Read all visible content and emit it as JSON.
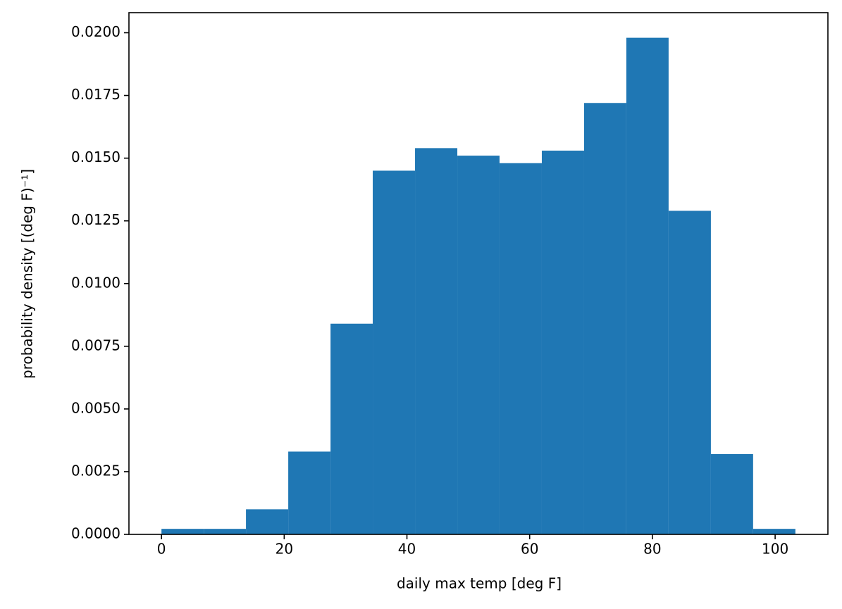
{
  "chart_data": {
    "type": "histogram",
    "xlabel": "daily max temp [deg F]",
    "ylabel": "probability density [(deg F)⁻¹]",
    "bins": [
      0,
      6.89,
      13.77,
      20.66,
      27.55,
      34.43,
      41.32,
      48.21,
      55.09,
      61.98,
      68.87,
      75.75,
      82.64,
      89.53,
      96.41,
      103.3
    ],
    "values": [
      0.00022,
      0.00022,
      0.001,
      0.0033,
      0.0084,
      0.0145,
      0.0154,
      0.0151,
      0.0148,
      0.0153,
      0.0172,
      0.0198,
      0.0129,
      0.0032,
      0.00022
    ],
    "color": "#1f77b4",
    "xlim": [
      -5.3,
      108.6
    ],
    "ylim": [
      0,
      0.0208
    ],
    "xticks": [
      0,
      20,
      40,
      60,
      80,
      100
    ],
    "yticks": [
      {
        "value": 0,
        "label": "0.0000"
      },
      {
        "value": 0.0025,
        "label": "0.0025"
      },
      {
        "value": 0.005,
        "label": "0.0050"
      },
      {
        "value": 0.0075,
        "label": "0.0075"
      },
      {
        "value": 0.01,
        "label": "0.0100"
      },
      {
        "value": 0.0125,
        "label": "0.0125"
      },
      {
        "value": 0.015,
        "label": "0.0150"
      },
      {
        "value": 0.0175,
        "label": "0.0175"
      },
      {
        "value": 0.02,
        "label": "0.0200"
      }
    ]
  }
}
